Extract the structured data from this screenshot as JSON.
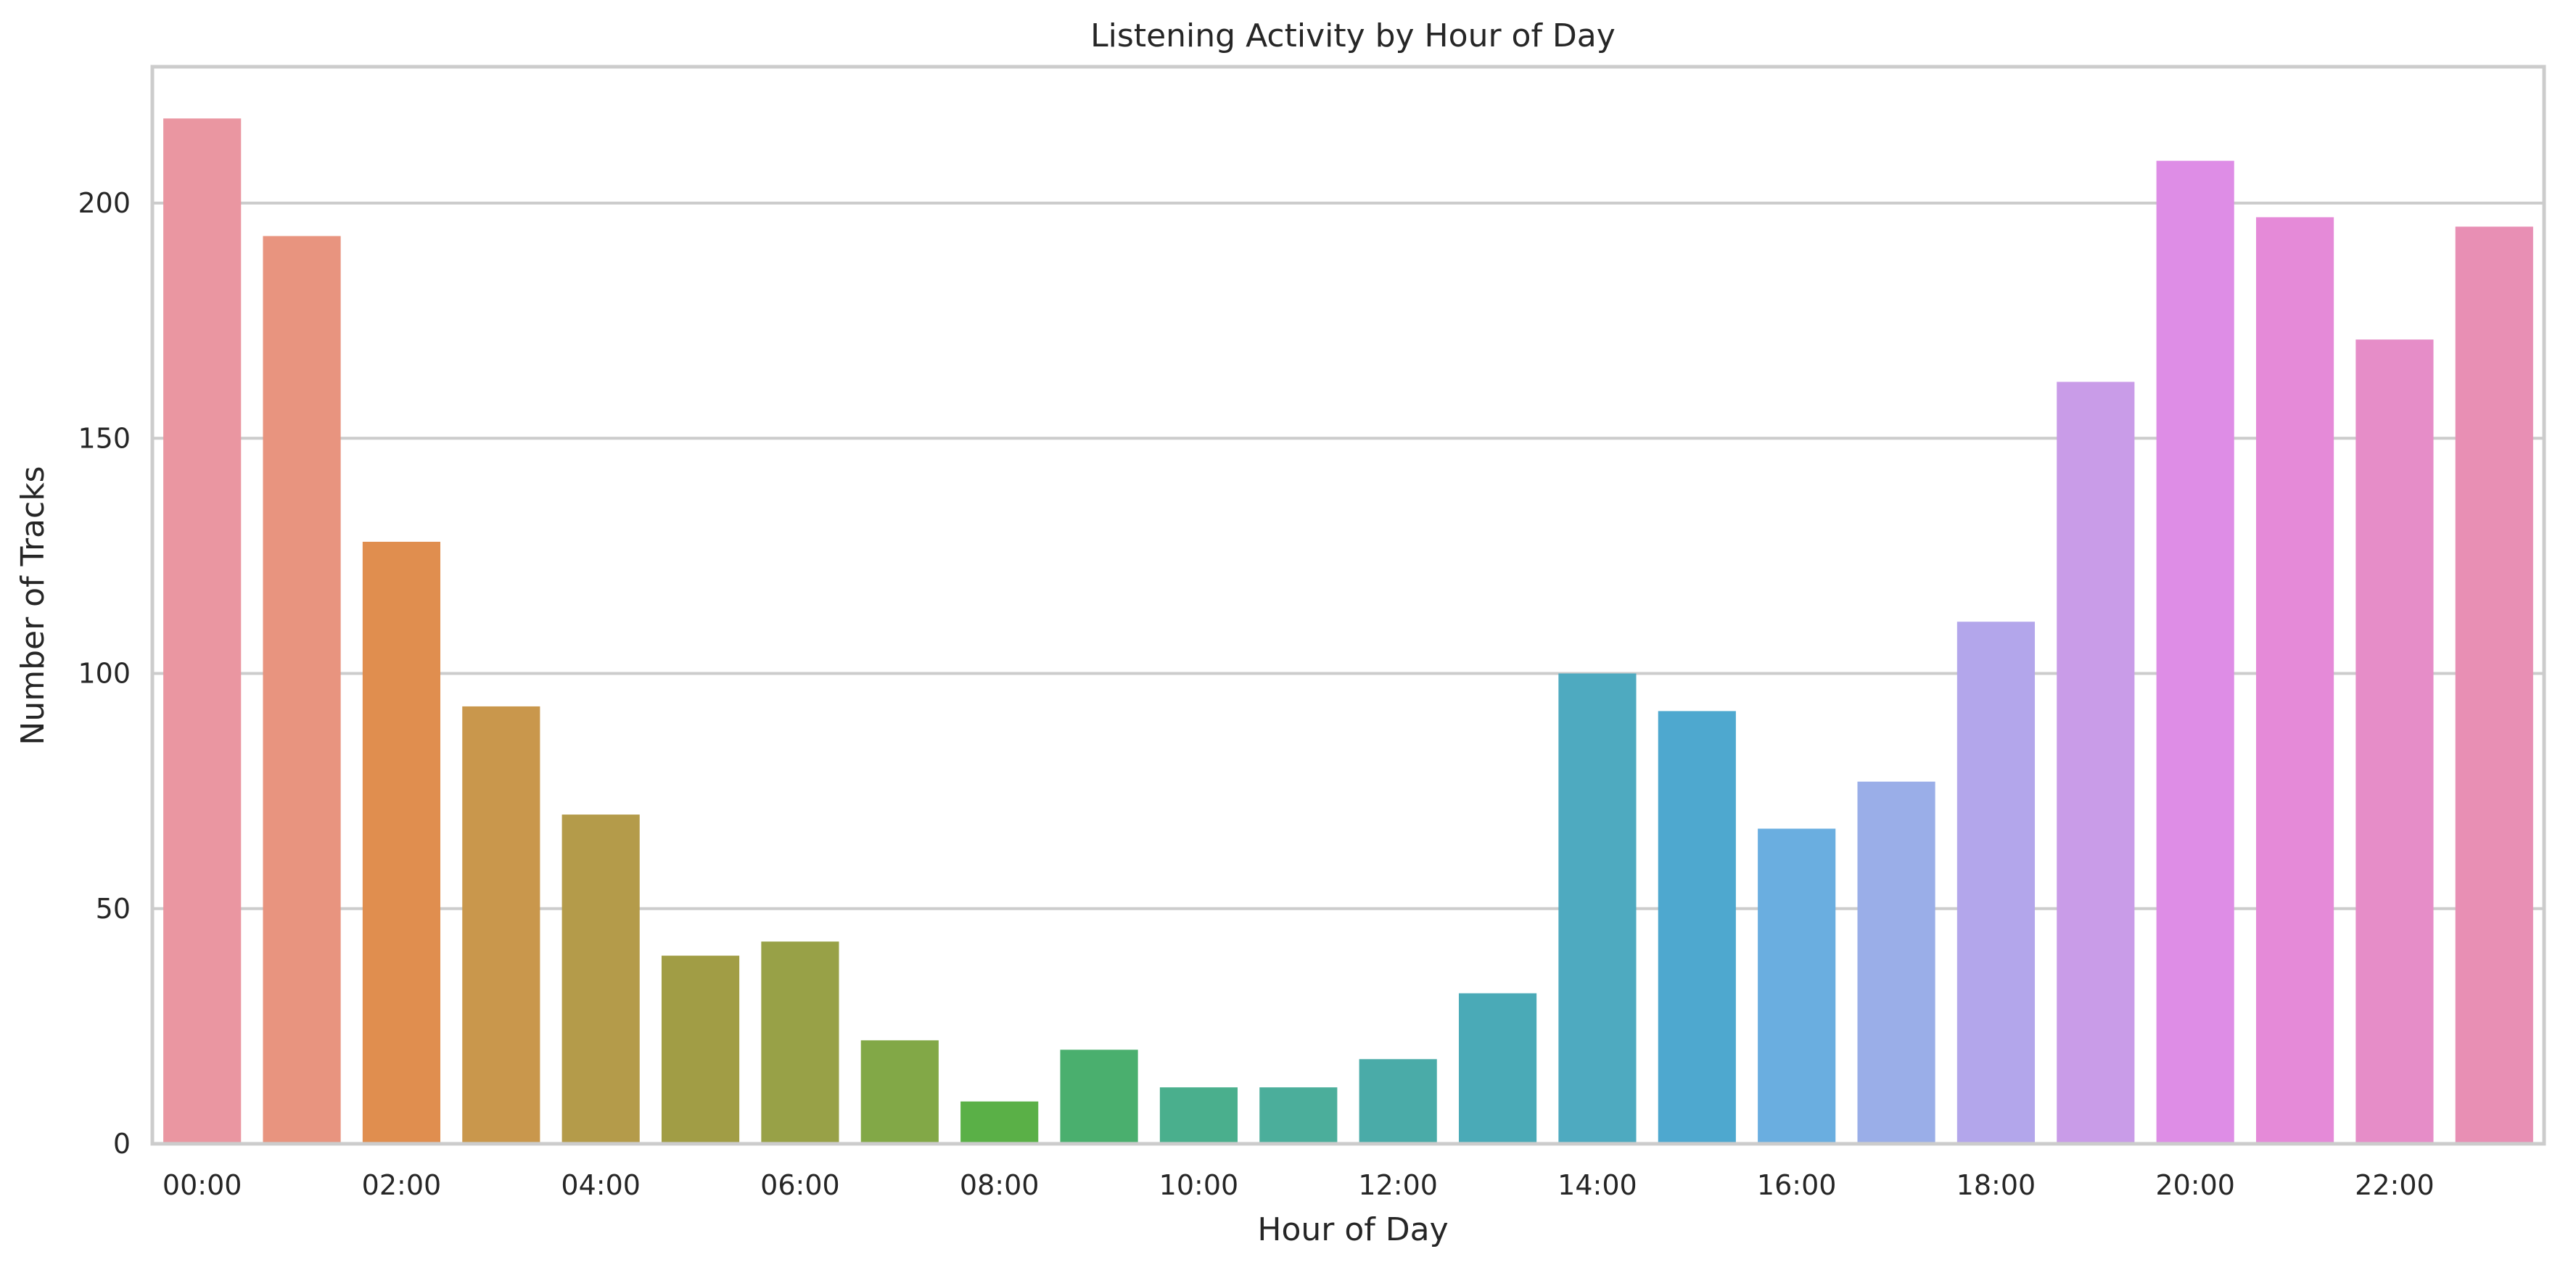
{
  "chart_data": {
    "type": "bar",
    "title": "Listening Activity by Hour of Day",
    "xlabel": "Hour of Day",
    "ylabel": "Number of Tracks",
    "ylim": [
      0,
      229
    ],
    "yticks": [
      0,
      50,
      100,
      150,
      200
    ],
    "grid": "y",
    "legend": "none",
    "categories": [
      "00:00",
      "01:00",
      "02:00",
      "03:00",
      "04:00",
      "05:00",
      "06:00",
      "07:00",
      "08:00",
      "09:00",
      "10:00",
      "11:00",
      "12:00",
      "13:00",
      "14:00",
      "15:00",
      "16:00",
      "17:00",
      "18:00",
      "19:00",
      "20:00",
      "21:00",
      "22:00",
      "23:00"
    ],
    "xtick_labels_shown": [
      "00:00",
      "02:00",
      "04:00",
      "06:00",
      "08:00",
      "10:00",
      "12:00",
      "14:00",
      "16:00",
      "18:00",
      "20:00",
      "22:00"
    ],
    "values": [
      218,
      193,
      128,
      93,
      70,
      40,
      43,
      22,
      9,
      20,
      12,
      12,
      18,
      32,
      100,
      92,
      67,
      77,
      111,
      162,
      209,
      197,
      171,
      195
    ],
    "colors": [
      "#ea96a1",
      "#e8947f",
      "#e08e4f",
      "#c9974c",
      "#b49b4a",
      "#a19d45",
      "#98a147",
      "#82a847",
      "#5ab047",
      "#4aaf6e",
      "#4aaf8d",
      "#4bae9b",
      "#4aaba8",
      "#4aaab7",
      "#4eaac0",
      "#4ea8cf",
      "#6aaee0",
      "#9aaee8",
      "#b3a6eb",
      "#c99ce8",
      "#de8de6",
      "#e58ad8",
      "#e68dc8",
      "#e88fb4"
    ]
  }
}
